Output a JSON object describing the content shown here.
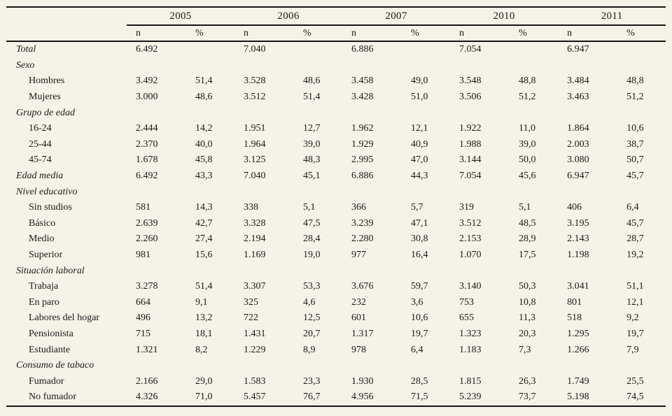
{
  "table": {
    "years": [
      "2005",
      "2006",
      "2007",
      "2010",
      "2011"
    ],
    "n_label": "n",
    "pct_label": "%",
    "colors": {
      "background": "#f6f2e7",
      "rule": "#161616",
      "text": "#1a1a1a"
    },
    "rows": [
      {
        "type": "total",
        "label": "Total",
        "values": [
          "6.492",
          "",
          "7.040",
          "",
          "6.886",
          "",
          "7.054",
          "",
          "6.947",
          ""
        ]
      },
      {
        "type": "section",
        "label": "Sexo",
        "values": [
          "",
          "",
          "",
          "",
          "",
          "",
          "",
          "",
          "",
          ""
        ]
      },
      {
        "type": "item",
        "label": "Hombres",
        "values": [
          "3.492",
          "51,4",
          "3.528",
          "48,6",
          "3.458",
          "49,0",
          "3.548",
          "48,8",
          "3.484",
          "48,8"
        ]
      },
      {
        "type": "item",
        "label": "Mujeres",
        "values": [
          "3.000",
          "48,6",
          "3.512",
          "51,4",
          "3.428",
          "51,0",
          "3.506",
          "51,2",
          "3.463",
          "51,2"
        ]
      },
      {
        "type": "section",
        "label": "Grupo de edad",
        "values": [
          "",
          "",
          "",
          "",
          "",
          "",
          "",
          "",
          "",
          ""
        ]
      },
      {
        "type": "item",
        "label": "16-24",
        "values": [
          "2.444",
          "14,2",
          "1.951",
          "12,7",
          "1.962",
          "12,1",
          "1.922",
          "11,0",
          "1.864",
          "10,6"
        ]
      },
      {
        "type": "item",
        "label": "25-44",
        "values": [
          "2.370",
          "40,0",
          "1.964",
          "39,0",
          "1.929",
          "40,9",
          "1.988",
          "39,0",
          "2.003",
          "38,7"
        ]
      },
      {
        "type": "item",
        "label": "45-74",
        "values": [
          "1.678",
          "45,8",
          "3.125",
          "48,3",
          "2.995",
          "47,0",
          "3.144",
          "50,0",
          "3.080",
          "50,7"
        ]
      },
      {
        "type": "summary",
        "label": "Edad media",
        "values": [
          "6.492",
          "43,3",
          "7.040",
          "45,1",
          "6.886",
          "44,3",
          "7.054",
          "45,6",
          "6.947",
          "45,7"
        ]
      },
      {
        "type": "section",
        "label": "Nivel educativo",
        "values": [
          "",
          "",
          "",
          "",
          "",
          "",
          "",
          "",
          "",
          ""
        ]
      },
      {
        "type": "item",
        "label": "Sin studios",
        "values": [
          "581",
          "14,3",
          "338",
          "5,1",
          "366",
          "5,7",
          "319",
          "5,1",
          "406",
          "6,4"
        ]
      },
      {
        "type": "item",
        "label": "Básico",
        "values": [
          "2.639",
          "42,7",
          "3.328",
          "47,5",
          "3.239",
          "47,1",
          "3.512",
          "48,5",
          "3.195",
          "45,7"
        ]
      },
      {
        "type": "item",
        "label": "Medio",
        "values": [
          "2.260",
          "27,4",
          "2.194",
          "28,4",
          "2.280",
          "30,8",
          "2.153",
          "28,9",
          "2.143",
          "28,7"
        ]
      },
      {
        "type": "item",
        "label": "Superior",
        "values": [
          "981",
          "15,6",
          "1.169",
          "19,0",
          "977",
          "16,4",
          "1.070",
          "17,5",
          "1.198",
          "19,2"
        ]
      },
      {
        "type": "section",
        "label": "Situación laboral",
        "values": [
          "",
          "",
          "",
          "",
          "",
          "",
          "",
          "",
          "",
          ""
        ]
      },
      {
        "type": "item",
        "label": "Trabaja",
        "values": [
          "3.278",
          "51,4",
          "3.307",
          "53,3",
          "3.676",
          "59,7",
          "3.140",
          "50,3",
          "3.041",
          "51,1"
        ]
      },
      {
        "type": "item",
        "label": "En paro",
        "values": [
          "664",
          "9,1",
          "325",
          "4,6",
          "232",
          "3,6",
          "753",
          "10,8",
          "801",
          "12,1"
        ]
      },
      {
        "type": "item",
        "label": "Labores del hogar",
        "values": [
          "496",
          "13,2",
          "722",
          "12,5",
          "601",
          "10,6",
          "655",
          "11,3",
          "518",
          "9,2"
        ]
      },
      {
        "type": "item",
        "label": "Pensionista",
        "values": [
          "715",
          "18,1",
          "1.431",
          "20,7",
          "1.317",
          "19,7",
          "1.323",
          "20,3",
          "1.295",
          "19,7"
        ]
      },
      {
        "type": "item",
        "label": "Estudiante",
        "values": [
          "1.321",
          "8,2",
          "1.229",
          "8,9",
          "978",
          "6,4",
          "1.183",
          "7,3",
          "1.266",
          "7,9"
        ]
      },
      {
        "type": "section",
        "label": "Consumo de tabaco",
        "values": [
          "",
          "",
          "",
          "",
          "",
          "",
          "",
          "",
          "",
          ""
        ]
      },
      {
        "type": "item",
        "label": "Fumador",
        "values": [
          "2.166",
          "29,0",
          "1.583",
          "23,3",
          "1.930",
          "28,5",
          "1.815",
          "26,3",
          "1.749",
          "25,5"
        ]
      },
      {
        "type": "item",
        "label": "No fumador",
        "values": [
          "4.326",
          "71,0",
          "5.457",
          "76,7",
          "4.956",
          "71,5",
          "5.239",
          "73,7",
          "5.198",
          "74,5"
        ]
      }
    ]
  }
}
